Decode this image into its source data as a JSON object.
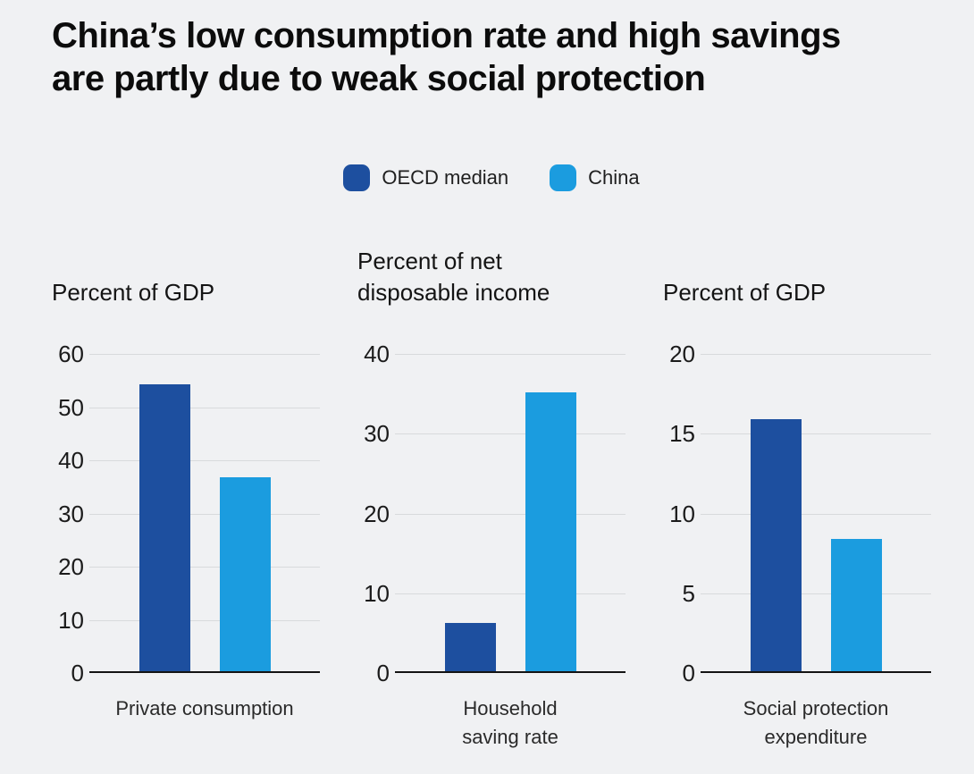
{
  "header": {
    "title": "China’s low consumption rate and high savings\nare partly due to weak social protection"
  },
  "legend": {
    "items": [
      {
        "label": "OECD median",
        "color": "#1d4f9f"
      },
      {
        "label": "China",
        "color": "#1b9cdf"
      }
    ]
  },
  "colors": {
    "background": "#f0f1f3",
    "gridline": "#d8dadc",
    "axis": "#141414",
    "oecd_blue": "#1d4f9f",
    "china_blue": "#1b9cdf"
  },
  "chart_data": [
    {
      "type": "bar",
      "title": "Percent of GDP",
      "ylabel": "Percent of GDP",
      "category": "Private consumption",
      "ylim": [
        0,
        60
      ],
      "yticks": [
        0,
        10,
        20,
        30,
        40,
        50,
        60
      ],
      "grid": true,
      "series": [
        {
          "name": "OECD median",
          "value": 54,
          "color": "#1d4f9f"
        },
        {
          "name": "China",
          "value": 36.5,
          "color": "#1b9cdf"
        }
      ]
    },
    {
      "type": "bar",
      "title": "Percent of net\ndisposable income",
      "ylabel": "Percent of net disposable income",
      "category": "Household\nsaving rate",
      "ylim": [
        0,
        40
      ],
      "yticks": [
        0,
        10,
        20,
        30,
        40
      ],
      "grid": true,
      "series": [
        {
          "name": "OECD median",
          "value": 6,
          "color": "#1d4f9f"
        },
        {
          "name": "China",
          "value": 35,
          "color": "#1b9cdf"
        }
      ]
    },
    {
      "type": "bar",
      "title": "Percent of GDP",
      "ylabel": "Percent of GDP",
      "category": "Social protection\nexpenditure",
      "ylim": [
        0,
        20
      ],
      "yticks": [
        0,
        5,
        10,
        15,
        20
      ],
      "grid": true,
      "series": [
        {
          "name": "OECD median",
          "value": 15.8,
          "color": "#1d4f9f"
        },
        {
          "name": "China",
          "value": 8.3,
          "color": "#1b9cdf"
        }
      ]
    }
  ]
}
